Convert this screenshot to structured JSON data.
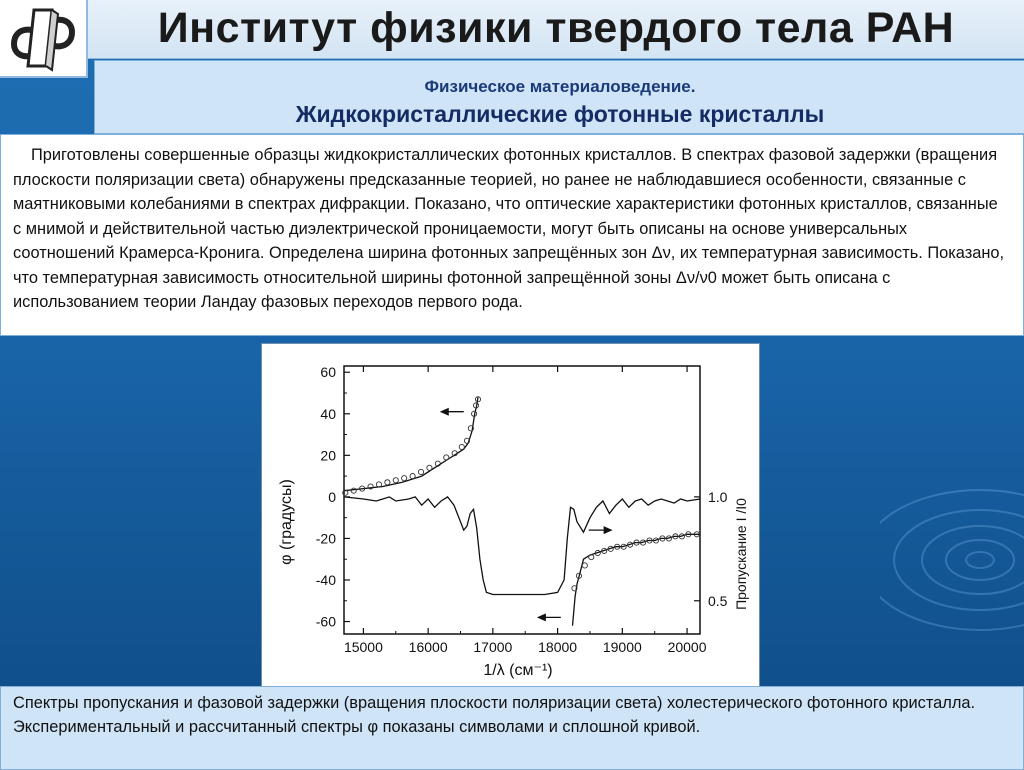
{
  "header": {
    "title": "Институт физики твердого тела РАН",
    "logo_icon": "issp-logo-icon"
  },
  "subtitle": {
    "line1": "Физическое материаловедение.",
    "line2": "Жидкокристаллические фотонные кристаллы"
  },
  "abstract": {
    "text": "Приготовлены совершенные образцы жидкокристаллических фотонных кристаллов. В спектрах фазовой задержки (вращения плоскости поляризации света) обнаружены предсказанные теорией, но ранее не наблюдавшиеся особенности, связанные с маятниковыми колебаниями в спектрах дифракции. Показано, что оптические характеристики фотонных кристаллов, связанные с мнимой и действительной частью диэлектрической проницаемости, могут быть описаны на основе универсальных соотношений Крамерса-Кронига. Определена ширина фотонных запрещённых зон Δν, их температурная зависимость. Показано, что температурная зависимость относительной ширины фотонной запрещённой зоны Δν/ν0 может быть описана с использованием теории Ландау фазовых переходов первого рода."
  },
  "chart_data": {
    "type": "line",
    "xlabel": "1/λ (см⁻¹)",
    "ylabel": "φ (градусы)",
    "ylabel_right": "Пропускание I /I0",
    "xlim": [
      14700,
      20200
    ],
    "ylim": [
      -66,
      63
    ],
    "x_ticks": [
      "15000",
      "16000",
      "17000",
      "18000",
      "19000",
      "20000"
    ],
    "y_ticks": [
      "60",
      "40",
      "20",
      "0",
      "-20",
      "-40",
      "-60"
    ],
    "right_ticks": [
      {
        "label": "1.0",
        "phi": 0
      },
      {
        "label": "0.5",
        "phi": -50
      }
    ],
    "grid": false,
    "series": [
      {
        "style": "solid",
        "x": [
          14700,
          15000,
          15200,
          15400,
          15500,
          15700,
          15800,
          15900,
          16000,
          16100,
          16200,
          16300,
          16400,
          16500,
          16550,
          16600,
          16650,
          16700,
          16750,
          16800,
          16850,
          16900,
          17000,
          17200,
          17500,
          17800,
          18000,
          18100,
          18150,
          18200,
          18250,
          18300,
          18400,
          18500,
          18600,
          18700,
          18800,
          18900,
          19000,
          19100,
          19200,
          19300,
          19400,
          19500,
          19600,
          19700,
          19800,
          19900,
          20000,
          20200
        ],
        "y": [
          0,
          -1,
          -2,
          0,
          -2,
          -1,
          0,
          -4,
          -1,
          -5,
          -2,
          0,
          -4,
          -12,
          -16,
          -14,
          -8,
          -6,
          -15,
          -30,
          -40,
          -46,
          -47,
          -47,
          -47,
          -47,
          -46,
          -40,
          -20,
          -5,
          -6,
          -12,
          -17,
          -10,
          -5,
          -2,
          -8,
          -4,
          -1,
          -5,
          -2,
          -1,
          -4,
          -2,
          -1,
          -2,
          -3,
          -1,
          -2,
          -1
        ]
      },
      {
        "style": "solid",
        "x": [
          14700,
          15000,
          15300,
          15600,
          15900,
          16100,
          16300,
          16450,
          16550,
          16620,
          16680,
          16720,
          16750,
          16770
        ],
        "y": [
          3,
          4,
          5,
          7,
          10,
          14,
          18,
          21,
          23,
          26,
          32,
          40,
          44,
          48
        ]
      },
      {
        "style": "solid",
        "x": [
          18230,
          18270,
          18300,
          18350,
          18400,
          18500,
          18600,
          18700,
          18800,
          18900,
          19000,
          19100,
          19200,
          19300,
          19400,
          19500,
          19600,
          19700,
          19800,
          19900,
          20000,
          20200
        ],
        "y": [
          -62,
          -48,
          -42,
          -36,
          -30,
          -28,
          -27,
          -26,
          -25,
          -24,
          -24,
          -23,
          -22,
          -22,
          -21,
          -21,
          -20,
          -20,
          -19,
          -19,
          -18,
          -18
        ]
      },
      {
        "style": "symbols",
        "x": [
          14720,
          14850,
          14980,
          15110,
          15240,
          15370,
          15500,
          15630,
          15760,
          15890,
          16020,
          16150,
          16280,
          16410,
          16520,
          16600,
          16660,
          16710,
          16740,
          16770
        ],
        "y": [
          2,
          3,
          4,
          5,
          6,
          7,
          8,
          9,
          10,
          12,
          14,
          16,
          19,
          21,
          24,
          27,
          33,
          40,
          44,
          47
        ]
      },
      {
        "style": "symbols",
        "x": [
          18260,
          18330,
          18420,
          18520,
          18620,
          18720,
          18820,
          18920,
          19020,
          19120,
          19220,
          19320,
          19420,
          19520,
          19620,
          19720,
          19820,
          19920,
          20020,
          20150
        ],
        "y": [
          -44,
          -38,
          -33,
          -29,
          -27,
          -26,
          -25,
          -24,
          -24,
          -23,
          -22,
          -22,
          -21,
          -21,
          -20,
          -20,
          -19,
          -19,
          -18,
          -18
        ]
      }
    ],
    "arrows": [
      {
        "from_x": 16550,
        "to_x": 16180,
        "y": 41
      },
      {
        "from_x": 18480,
        "to_x": 18850,
        "y": -16
      },
      {
        "from_x": 18050,
        "to_x": 17680,
        "y": -58
      }
    ]
  },
  "caption": {
    "text": "Спектры пропускания и фазовой задержки (вращения плоскости поляризации света) холестерического фотонного кристалла. Экспериментальный и рассчитанный спектры φ показаны символами и сплошной кривой."
  },
  "colors": {
    "title_band": "#d3e4f3",
    "subtitle_band": "#cfe4f7",
    "subtitle_text": "#142b63",
    "background": "#1a66ab"
  }
}
